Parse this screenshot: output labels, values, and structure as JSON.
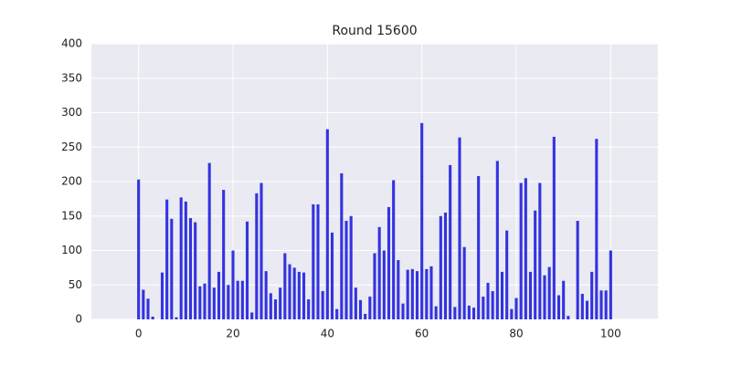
{
  "chart_data": {
    "type": "bar",
    "title": "Round  15600",
    "x": [
      0,
      1,
      2,
      3,
      4,
      5,
      6,
      7,
      8,
      9,
      10,
      11,
      12,
      13,
      14,
      15,
      16,
      17,
      18,
      19,
      20,
      21,
      22,
      23,
      24,
      25,
      26,
      27,
      28,
      29,
      30,
      31,
      32,
      33,
      34,
      35,
      36,
      37,
      38,
      39,
      40,
      41,
      42,
      43,
      44,
      45,
      46,
      47,
      48,
      49,
      50,
      51,
      52,
      53,
      54,
      55,
      56,
      57,
      58,
      59,
      60,
      61,
      62,
      63,
      64,
      65,
      66,
      67,
      68,
      69,
      70,
      71,
      72,
      73,
      74,
      75,
      76,
      77,
      78,
      79,
      80,
      81,
      82,
      83,
      84,
      85,
      86,
      87,
      88,
      89,
      90,
      91,
      92,
      93,
      94,
      95,
      96,
      97,
      98,
      99,
      100
    ],
    "values": [
      203,
      43,
      30,
      4,
      0,
      68,
      174,
      146,
      3,
      177,
      171,
      147,
      141,
      48,
      52,
      227,
      46,
      69,
      188,
      50,
      100,
      56,
      56,
      142,
      10,
      183,
      198,
      70,
      38,
      29,
      46,
      96,
      80,
      75,
      69,
      68,
      29,
      167,
      167,
      41,
      276,
      126,
      15,
      212,
      143,
      150,
      46,
      28,
      8,
      33,
      96,
      134,
      100,
      163,
      202,
      86,
      23,
      72,
      73,
      70,
      285,
      73,
      77,
      19,
      150,
      155,
      224,
      18,
      264,
      105,
      20,
      17,
      208,
      33,
      53,
      41,
      230,
      69,
      129,
      15,
      31,
      198,
      205,
      69,
      158,
      198,
      64,
      76,
      265,
      35,
      56,
      5,
      0,
      143,
      37,
      27,
      69,
      262,
      42,
      42,
      100
    ],
    "color": "#3333e0",
    "xlim": [
      -10,
      110
    ],
    "xticks": [
      0,
      20,
      40,
      60,
      80,
      100
    ],
    "ylim": [
      0,
      400
    ],
    "yticks": [
      0,
      50,
      100,
      150,
      200,
      250,
      300,
      350,
      400
    ],
    "grid": true
  }
}
